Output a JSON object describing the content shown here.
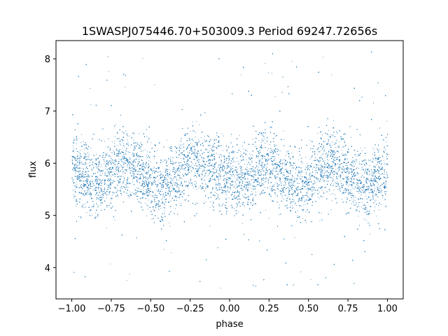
{
  "chart_data": {
    "type": "scatter",
    "title": "1SWASPJ075446.70+503009.3 Period 69247.72656s",
    "xlabel": "phase",
    "ylabel": "flux",
    "xlim": [
      -1.1,
      1.1
    ],
    "ylim": [
      3.4,
      8.35
    ],
    "x_ticks": [
      -1.0,
      -0.75,
      -0.5,
      -0.25,
      0.0,
      0.25,
      0.5,
      0.75,
      1.0
    ],
    "x_tick_labels": [
      "−1.00",
      "−0.75",
      "−0.50",
      "−0.25",
      "0.00",
      "0.25",
      "0.50",
      "0.75",
      "1.00"
    ],
    "y_ticks": [
      4,
      5,
      6,
      7,
      8
    ],
    "y_tick_labels": [
      "4",
      "5",
      "6",
      "7",
      "8"
    ],
    "grid": false,
    "series_color": "#1f77b4",
    "series": [
      {
        "x": [
          -1.0,
          -0.95,
          -0.9,
          -0.85,
          -0.8,
          -0.75,
          -0.7,
          -0.65,
          -0.6,
          -0.55,
          -0.5,
          -0.45,
          -0.4,
          -0.35,
          -0.3,
          -0.25,
          -0.2,
          -0.15,
          -0.1,
          -0.05,
          0.0,
          0.05,
          0.1,
          0.15,
          0.2,
          0.25,
          0.3,
          0.35,
          0.4,
          0.45,
          0.5,
          0.55,
          0.6,
          0.65,
          0.7,
          0.75,
          0.8,
          0.85,
          0.9,
          0.95,
          1.0
        ],
        "y": [
          5.85,
          5.82,
          5.7,
          5.62,
          5.68,
          5.85,
          5.98,
          6.02,
          5.95,
          5.8,
          5.6,
          5.52,
          5.58,
          5.75,
          5.92,
          6.0,
          6.02,
          5.98,
          5.9,
          5.78,
          5.65,
          5.6,
          5.65,
          5.82,
          5.98,
          6.02,
          5.95,
          5.8,
          5.62,
          5.55,
          5.6,
          5.78,
          5.95,
          6.02,
          5.95,
          5.78,
          5.6,
          5.55,
          5.62,
          5.78,
          5.9
        ],
        "spread": [
          0.32,
          0.33,
          0.33,
          0.32,
          0.32,
          0.33,
          0.34,
          0.34,
          0.33,
          0.32,
          0.32,
          0.32,
          0.32,
          0.33,
          0.34,
          0.34,
          0.34,
          0.34,
          0.33,
          0.32,
          0.32,
          0.32,
          0.32,
          0.33,
          0.34,
          0.34,
          0.34,
          0.33,
          0.32,
          0.32,
          0.32,
          0.33,
          0.34,
          0.34,
          0.34,
          0.33,
          0.32,
          0.32,
          0.32,
          0.33,
          0.33
        ]
      }
    ],
    "outlier_range": [
      3.6,
      8.15
    ]
  }
}
